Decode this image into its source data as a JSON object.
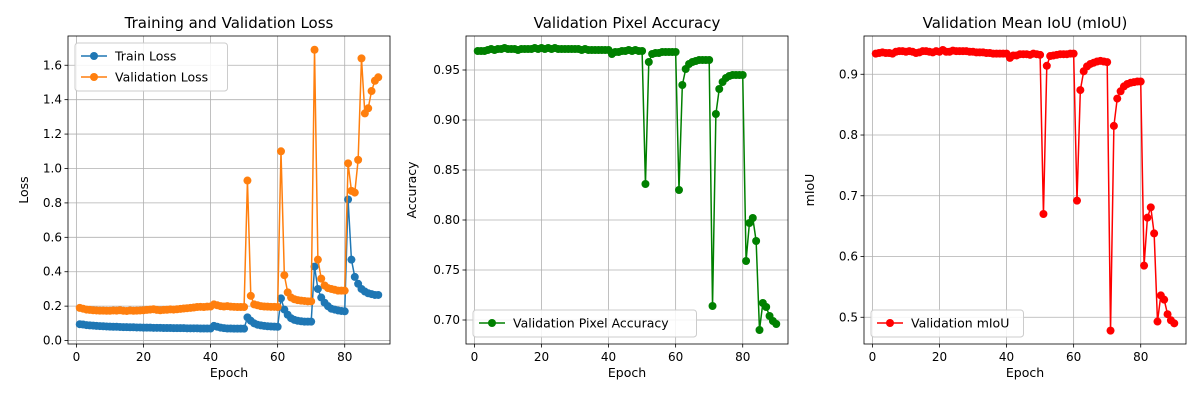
{
  "chart_data": [
    {
      "type": "line",
      "title": "Training and Validation Loss",
      "xlabel": "Epoch",
      "ylabel": "Loss",
      "xlim": [
        -2.5,
        93.5
      ],
      "ylim": [
        -0.02,
        1.77
      ],
      "xticks": [
        0,
        20,
        40,
        60,
        80
      ],
      "yticks": [
        0.0,
        0.2,
        0.4,
        0.6,
        0.8,
        1.0,
        1.2,
        1.4,
        1.6
      ],
      "ytick_labels": [
        "0.0",
        "0.2",
        "0.4",
        "0.6",
        "0.8",
        "1.0",
        "1.2",
        "1.4",
        "1.6"
      ],
      "grid": true,
      "legend": "top-left",
      "x": [
        1,
        2,
        3,
        4,
        5,
        6,
        7,
        8,
        9,
        10,
        11,
        12,
        13,
        14,
        15,
        16,
        17,
        18,
        19,
        20,
        21,
        22,
        23,
        24,
        25,
        26,
        27,
        28,
        29,
        30,
        31,
        32,
        33,
        34,
        35,
        36,
        37,
        38,
        39,
        40,
        41,
        42,
        43,
        44,
        45,
        46,
        47,
        48,
        49,
        50,
        51,
        52,
        53,
        54,
        55,
        56,
        57,
        58,
        59,
        60,
        61,
        62,
        63,
        64,
        65,
        66,
        67,
        68,
        69,
        70,
        71,
        72,
        73,
        74,
        75,
        76,
        77,
        78,
        79,
        80,
        81,
        82,
        83,
        84,
        85,
        86,
        87,
        88,
        89,
        90
      ],
      "series": [
        {
          "name": "Train Loss",
          "color": "#1f77b4",
          "values": [
            0.095,
            0.093,
            0.09,
            0.088,
            0.087,
            0.085,
            0.084,
            0.083,
            0.082,
            0.081,
            0.08,
            0.08,
            0.079,
            0.078,
            0.078,
            0.077,
            0.077,
            0.076,
            0.076,
            0.075,
            0.075,
            0.075,
            0.074,
            0.074,
            0.074,
            0.073,
            0.073,
            0.073,
            0.072,
            0.072,
            0.072,
            0.072,
            0.071,
            0.071,
            0.071,
            0.071,
            0.07,
            0.07,
            0.07,
            0.07,
            0.085,
            0.08,
            0.075,
            0.072,
            0.07,
            0.07,
            0.069,
            0.069,
            0.069,
            0.069,
            0.135,
            0.115,
            0.1,
            0.092,
            0.088,
            0.085,
            0.083,
            0.082,
            0.081,
            0.08,
            0.245,
            0.18,
            0.15,
            0.13,
            0.12,
            0.115,
            0.112,
            0.11,
            0.11,
            0.11,
            0.43,
            0.3,
            0.25,
            0.22,
            0.2,
            0.185,
            0.18,
            0.175,
            0.172,
            0.17,
            0.82,
            0.47,
            0.37,
            0.33,
            0.3,
            0.285,
            0.275,
            0.27,
            0.265,
            0.265
          ]
        },
        {
          "name": "Validation Loss",
          "color": "#ff7f0e",
          "values": [
            0.19,
            0.185,
            0.18,
            0.178,
            0.176,
            0.175,
            0.174,
            0.174,
            0.173,
            0.173,
            0.175,
            0.174,
            0.176,
            0.173,
            0.172,
            0.175,
            0.173,
            0.174,
            0.175,
            0.176,
            0.178,
            0.18,
            0.182,
            0.178,
            0.176,
            0.178,
            0.179,
            0.181,
            0.18,
            0.182,
            0.184,
            0.186,
            0.188,
            0.19,
            0.192,
            0.195,
            0.196,
            0.195,
            0.197,
            0.198,
            0.21,
            0.205,
            0.2,
            0.198,
            0.2,
            0.197,
            0.196,
            0.195,
            0.195,
            0.195,
            0.93,
            0.26,
            0.21,
            0.205,
            0.2,
            0.198,
            0.197,
            0.196,
            0.196,
            0.195,
            1.1,
            0.38,
            0.28,
            0.25,
            0.24,
            0.235,
            0.232,
            0.23,
            0.228,
            0.228,
            1.69,
            0.47,
            0.36,
            0.32,
            0.305,
            0.3,
            0.295,
            0.29,
            0.29,
            0.29,
            1.03,
            0.87,
            0.86,
            1.05,
            1.64,
            1.32,
            1.35,
            1.45,
            1.51,
            1.53
          ]
        }
      ]
    },
    {
      "type": "line",
      "title": "Validation Pixel Accuracy",
      "xlabel": "Epoch",
      "ylabel": "Accuracy",
      "xlim": [
        -2.5,
        93.5
      ],
      "ylim": [
        0.676,
        0.984
      ],
      "xticks": [
        0,
        20,
        40,
        60,
        80
      ],
      "yticks": [
        0.7,
        0.75,
        0.8,
        0.85,
        0.9,
        0.95
      ],
      "ytick_labels": [
        "0.70",
        "0.75",
        "0.80",
        "0.85",
        "0.90",
        "0.95"
      ],
      "grid": true,
      "legend": "bottom-left",
      "x": [
        1,
        2,
        3,
        4,
        5,
        6,
        7,
        8,
        9,
        10,
        11,
        12,
        13,
        14,
        15,
        16,
        17,
        18,
        19,
        20,
        21,
        22,
        23,
        24,
        25,
        26,
        27,
        28,
        29,
        30,
        31,
        32,
        33,
        34,
        35,
        36,
        37,
        38,
        39,
        40,
        41,
        42,
        43,
        44,
        45,
        46,
        47,
        48,
        49,
        50,
        51,
        52,
        53,
        54,
        55,
        56,
        57,
        58,
        59,
        60,
        61,
        62,
        63,
        64,
        65,
        66,
        67,
        68,
        69,
        70,
        71,
        72,
        73,
        74,
        75,
        76,
        77,
        78,
        79,
        80,
        81,
        82,
        83,
        84,
        85,
        86,
        87,
        88,
        89,
        90
      ],
      "series": [
        {
          "name": "Validation Pixel Accuracy",
          "color": "#008000",
          "values": [
            0.969,
            0.969,
            0.969,
            0.97,
            0.971,
            0.97,
            0.971,
            0.971,
            0.972,
            0.971,
            0.971,
            0.971,
            0.97,
            0.971,
            0.971,
            0.971,
            0.971,
            0.972,
            0.971,
            0.972,
            0.971,
            0.972,
            0.971,
            0.972,
            0.971,
            0.971,
            0.971,
            0.971,
            0.971,
            0.971,
            0.971,
            0.97,
            0.971,
            0.97,
            0.97,
            0.97,
            0.97,
            0.97,
            0.97,
            0.97,
            0.966,
            0.968,
            0.968,
            0.969,
            0.969,
            0.97,
            0.969,
            0.97,
            0.969,
            0.969,
            0.836,
            0.958,
            0.966,
            0.967,
            0.967,
            0.968,
            0.968,
            0.968,
            0.968,
            0.968,
            0.83,
            0.935,
            0.951,
            0.956,
            0.958,
            0.959,
            0.96,
            0.96,
            0.96,
            0.96,
            0.714,
            0.906,
            0.931,
            0.938,
            0.942,
            0.944,
            0.945,
            0.945,
            0.945,
            0.945,
            0.759,
            0.797,
            0.802,
            0.779,
            0.69,
            0.717,
            0.713,
            0.704,
            0.699,
            0.696
          ]
        }
      ]
    },
    {
      "type": "line",
      "title": "Validation Mean IoU (mIoU)",
      "xlabel": "Epoch",
      "ylabel": "mIoU",
      "xlim": [
        -2.5,
        93.5
      ],
      "ylim": [
        0.456,
        0.963
      ],
      "xticks": [
        0,
        20,
        40,
        60,
        80
      ],
      "yticks": [
        0.5,
        0.6,
        0.7,
        0.8,
        0.9
      ],
      "ytick_labels": [
        "0.5",
        "0.6",
        "0.7",
        "0.8",
        "0.9"
      ],
      "grid": true,
      "legend": "bottom-left",
      "x": [
        1,
        2,
        3,
        4,
        5,
        6,
        7,
        8,
        9,
        10,
        11,
        12,
        13,
        14,
        15,
        16,
        17,
        18,
        19,
        20,
        21,
        22,
        23,
        24,
        25,
        26,
        27,
        28,
        29,
        30,
        31,
        32,
        33,
        34,
        35,
        36,
        37,
        38,
        39,
        40,
        41,
        42,
        43,
        44,
        45,
        46,
        47,
        48,
        49,
        50,
        51,
        52,
        53,
        54,
        55,
        56,
        57,
        58,
        59,
        60,
        61,
        62,
        63,
        64,
        65,
        66,
        67,
        68,
        69,
        70,
        71,
        72,
        73,
        74,
        75,
        76,
        77,
        78,
        79,
        80,
        81,
        82,
        83,
        84,
        85,
        86,
        87,
        88,
        89,
        90
      ],
      "series": [
        {
          "name": "Validation mIoU",
          "color": "#ff0000",
          "values": [
            0.934,
            0.935,
            0.936,
            0.935,
            0.935,
            0.934,
            0.937,
            0.938,
            0.938,
            0.937,
            0.938,
            0.937,
            0.935,
            0.936,
            0.938,
            0.938,
            0.937,
            0.936,
            0.938,
            0.937,
            0.94,
            0.937,
            0.937,
            0.939,
            0.938,
            0.938,
            0.938,
            0.938,
            0.937,
            0.937,
            0.936,
            0.936,
            0.936,
            0.935,
            0.935,
            0.934,
            0.934,
            0.934,
            0.934,
            0.934,
            0.927,
            0.931,
            0.931,
            0.933,
            0.933,
            0.933,
            0.932,
            0.934,
            0.933,
            0.932,
            0.67,
            0.914,
            0.93,
            0.931,
            0.932,
            0.933,
            0.933,
            0.933,
            0.934,
            0.934,
            0.692,
            0.874,
            0.905,
            0.913,
            0.917,
            0.919,
            0.921,
            0.922,
            0.921,
            0.92,
            0.478,
            0.815,
            0.86,
            0.872,
            0.88,
            0.884,
            0.886,
            0.887,
            0.888,
            0.888,
            0.585,
            0.664,
            0.681,
            0.638,
            0.493,
            0.536,
            0.529,
            0.505,
            0.495,
            0.49
          ]
        }
      ]
    }
  ]
}
